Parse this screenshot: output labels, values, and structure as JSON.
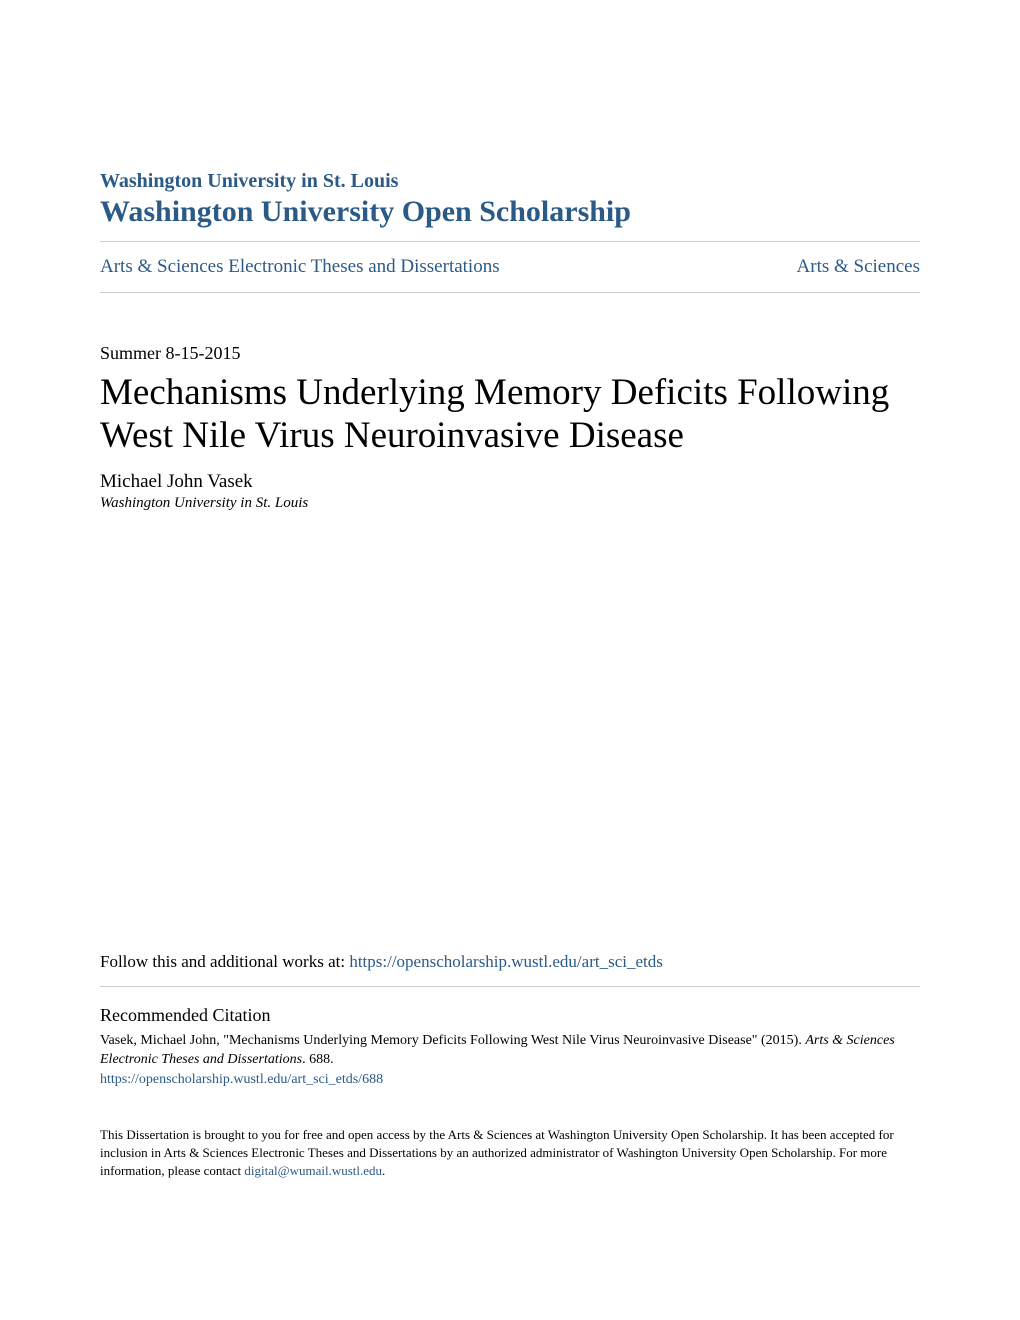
{
  "header": {
    "institution": "Washington University in St. Louis",
    "repository": "Washington University Open Scholarship"
  },
  "breadcrumb": {
    "left": "Arts & Sciences Electronic Theses and Dissertations",
    "right": "Arts & Sciences"
  },
  "paper": {
    "date": "Summer 8-15-2015",
    "title": "Mechanisms Underlying Memory Deficits Following West Nile Virus Neuroinvasive Disease",
    "author": "Michael John Vasek",
    "affiliation": "Washington University in St. Louis"
  },
  "follow": {
    "label": "Follow this and additional works at: ",
    "url": "https://openscholarship.wustl.edu/art_sci_etds"
  },
  "citation": {
    "heading": "Recommended Citation",
    "text_part1": "Vasek, Michael John, \"Mechanisms Underlying Memory Deficits Following West Nile Virus Neuroinvasive Disease\" (2015). ",
    "text_italic": "Arts & Sciences Electronic Theses and Dissertations",
    "text_part2": ". 688.",
    "link": "https://openscholarship.wustl.edu/art_sci_etds/688"
  },
  "footer": {
    "text_part1": "This Dissertation is brought to you for free and open access by the Arts & Sciences at Washington University Open Scholarship. It has been accepted for inclusion in Arts & Sciences Electronic Theses and Dissertations by an authorized administrator of Washington University Open Scholarship. For more information, please contact ",
    "email": "digital@wumail.wustl.edu",
    "text_part2": "."
  },
  "colors": {
    "link_color": "#2b5a87",
    "text_color": "#000000",
    "divider_color": "#cccccc",
    "background": "#ffffff"
  }
}
